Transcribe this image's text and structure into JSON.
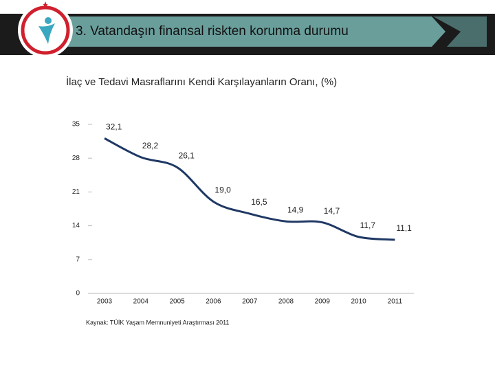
{
  "header": {
    "title": "3. Vatandaşın finansal riskten korunma durumu"
  },
  "chart_data": {
    "type": "line",
    "title": "İlaç ve Tedavi Masraflarını Kendi Karşılayanların Oranı, (%)",
    "categories": [
      "2003",
      "2004",
      "2005",
      "2006",
      "2007",
      "2008",
      "2009",
      "2010",
      "2011"
    ],
    "series": [
      {
        "name": "Oran",
        "color": "#1f3864",
        "values": [
          32.1,
          28.2,
          26.1,
          19.0,
          16.5,
          14.9,
          14.7,
          11.7,
          11.1
        ],
        "value_labels": [
          "32,1",
          "28,2",
          "26,1",
          "19,0",
          "16,5",
          "14,9",
          "14,7",
          "11,7",
          "11,1"
        ]
      }
    ],
    "ylim": [
      0,
      35
    ],
    "yticks": [
      0,
      7,
      14,
      21,
      28,
      35
    ],
    "source": "Kaynak: TÜİK Yaşam Memnuniyeti Araştırması 2011"
  }
}
